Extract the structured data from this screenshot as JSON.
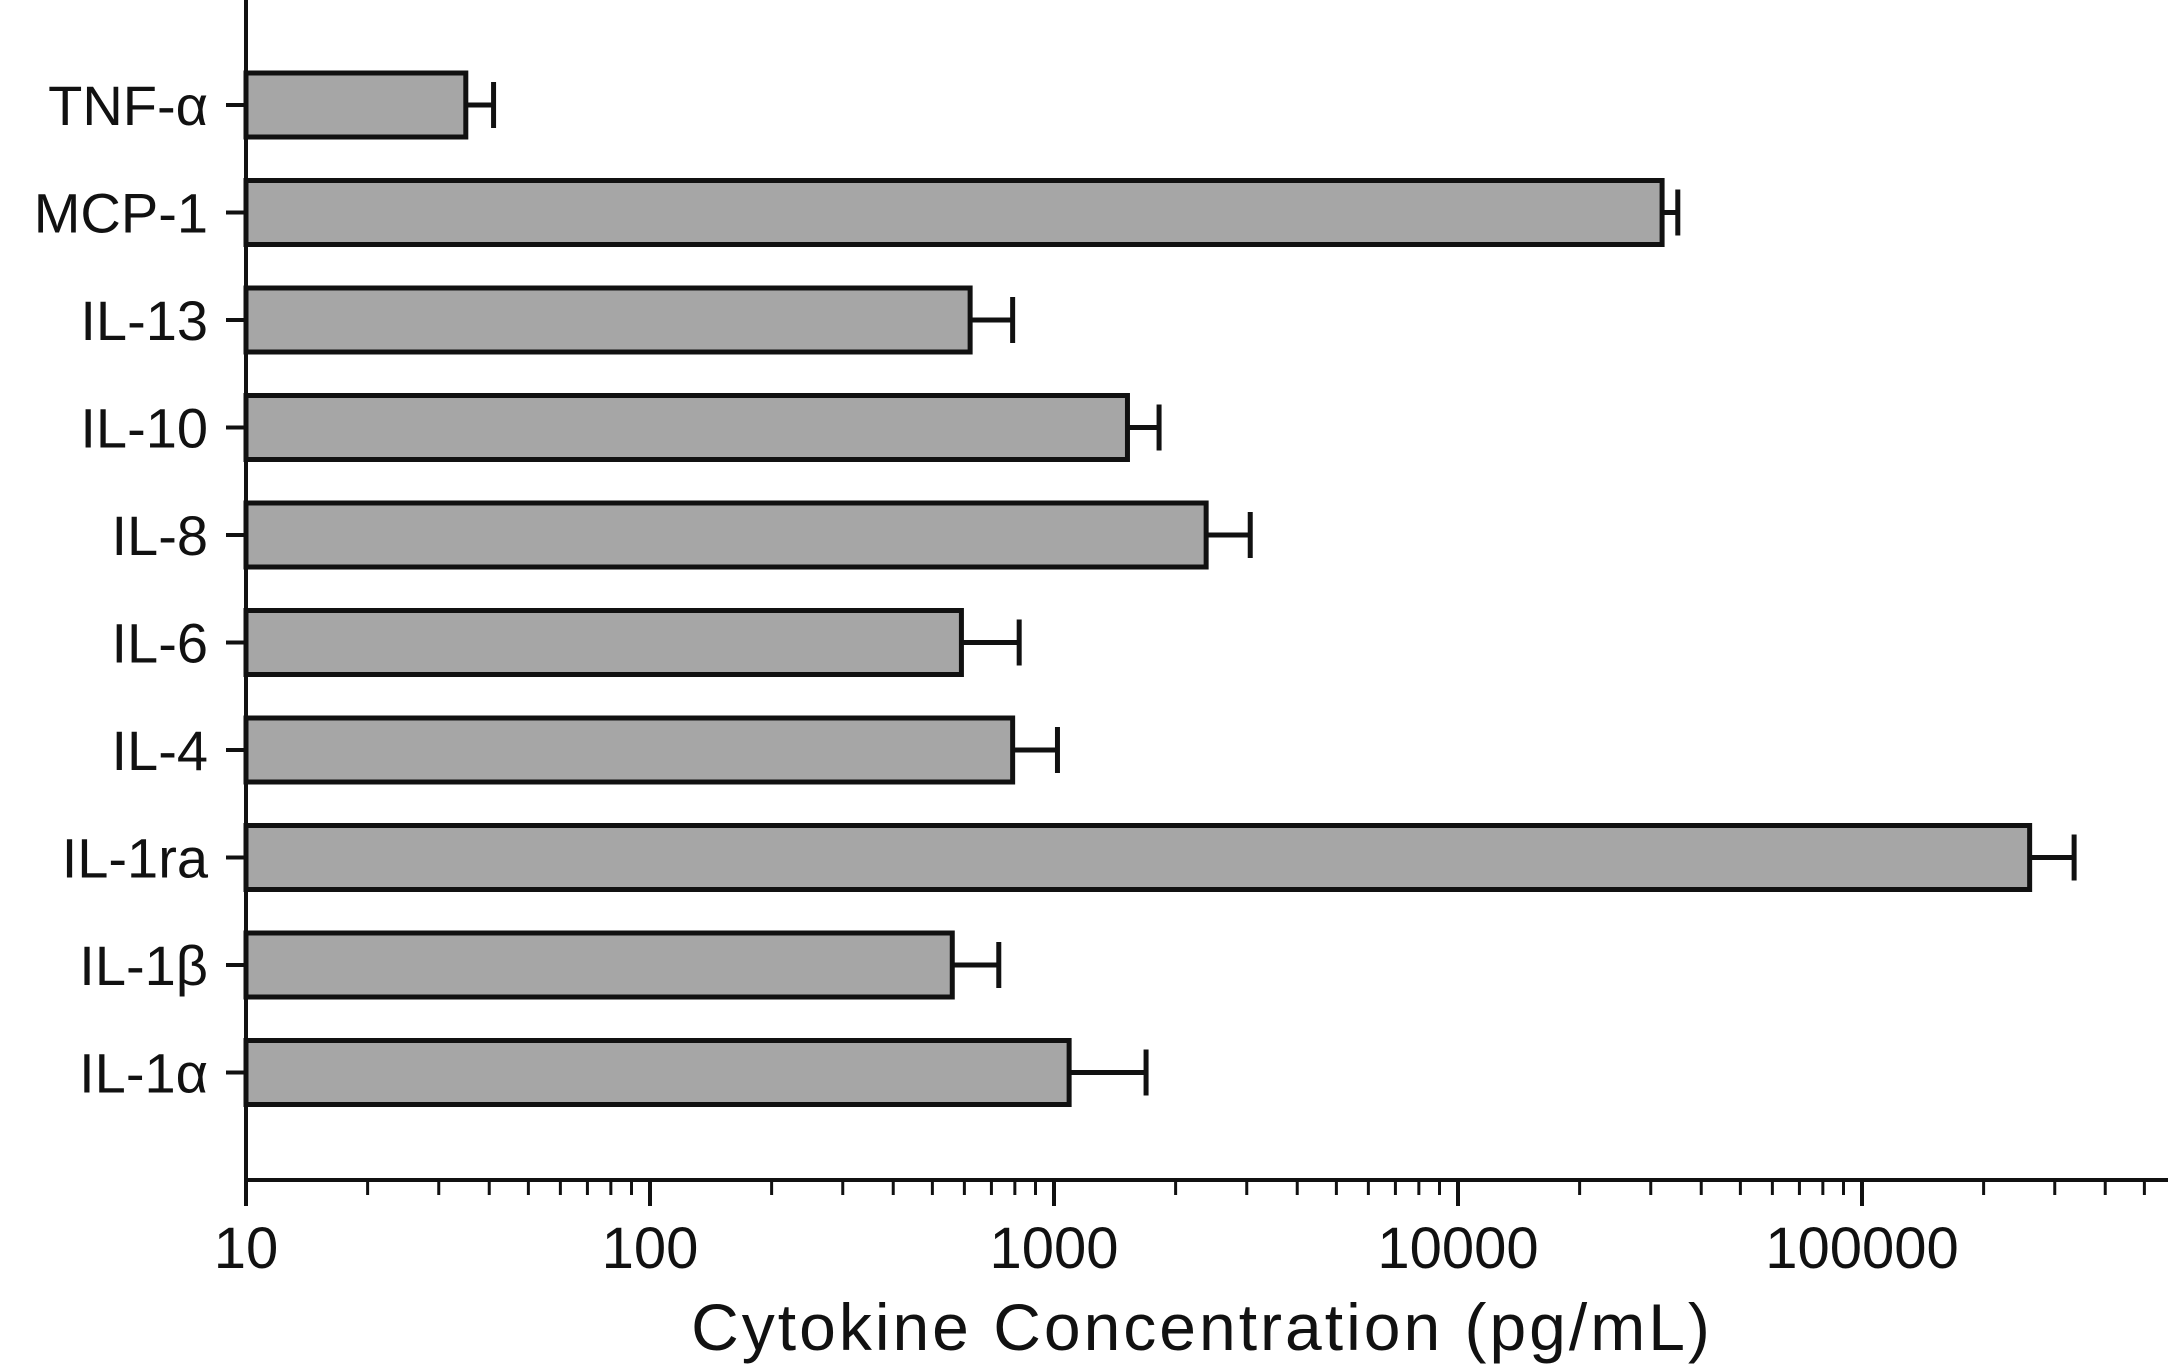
{
  "chart_data": {
    "type": "bar",
    "orientation": "horizontal",
    "title": "",
    "xlabel": "Cytokine Concentration (pg/mL)",
    "ylabel": "",
    "x_scale": "log",
    "xlim": [
      10,
      600000
    ],
    "x_ticks": [
      10,
      100,
      1000,
      10000,
      100000
    ],
    "x_tick_labels": [
      "10",
      "100",
      "1000",
      "10000",
      "100000"
    ],
    "categories": [
      "TNF-α",
      "MCP-1",
      "IL-13",
      "IL-10",
      "IL-8",
      "IL-6",
      "IL-4",
      "IL-1ra",
      "IL-1β",
      "IL-1α"
    ],
    "values": [
      35,
      32000,
      620,
      1520,
      2380,
      590,
      790,
      260000,
      560,
      1090
    ],
    "error_plus": [
      6,
      3000,
      170,
      300,
      680,
      230,
      230,
      75000,
      170,
      600
    ],
    "bar_color": "#a6a6a6",
    "edge_color": "#111111",
    "grid": false,
    "legend": "none"
  }
}
